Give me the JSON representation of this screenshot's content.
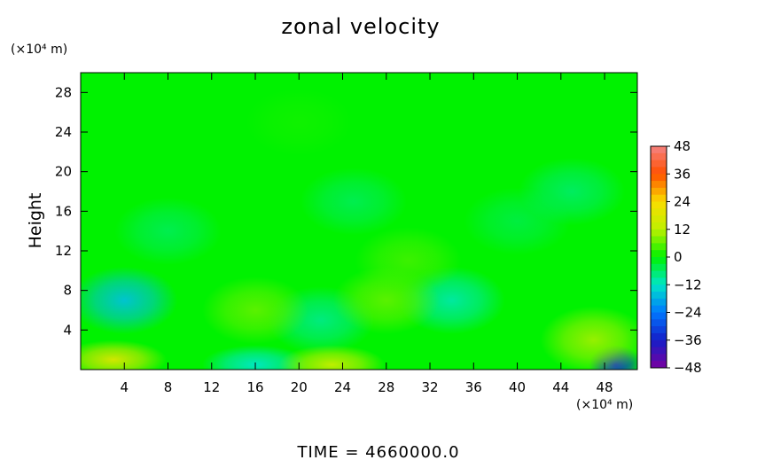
{
  "chart_data": {
    "type": "heatmap",
    "title": "zonal velocity",
    "ylabel": "Height",
    "y_unit": "(×10⁴ m)",
    "x_unit": "(×10⁴ m)",
    "x_ticks": [
      4,
      8,
      12,
      16,
      20,
      24,
      28,
      32,
      36,
      40,
      44,
      48
    ],
    "y_ticks": [
      4,
      8,
      12,
      16,
      20,
      24,
      28
    ],
    "xlim": [
      0,
      51
    ],
    "ylim": [
      0,
      30
    ],
    "colorbar": {
      "ticks": [
        48,
        36,
        24,
        12,
        0,
        -12,
        -24,
        -36,
        -48
      ],
      "range": [
        -48,
        48
      ]
    },
    "field_features": [
      {
        "x": 4,
        "y": 7,
        "value": -16
      },
      {
        "x": 3,
        "y": 1,
        "value": 18
      },
      {
        "x": 22,
        "y": 5,
        "value": -8
      },
      {
        "x": 34,
        "y": 7,
        "value": -10
      },
      {
        "x": 16,
        "y": 6,
        "value": 6
      },
      {
        "x": 28,
        "y": 7,
        "value": 6
      },
      {
        "x": 16,
        "y": 0.5,
        "value": -12
      },
      {
        "x": 23,
        "y": 0.5,
        "value": 14
      },
      {
        "x": 49,
        "y": 0.5,
        "value": -34
      },
      {
        "x": 47,
        "y": 3,
        "value": 10
      },
      {
        "x": 8,
        "y": 14,
        "value": -5
      },
      {
        "x": 25,
        "y": 17,
        "value": -5
      },
      {
        "x": 40,
        "y": 15,
        "value": -4
      },
      {
        "x": 45,
        "y": 18,
        "value": -6
      },
      {
        "x": 30,
        "y": 11,
        "value": 4
      },
      {
        "x": 20,
        "y": 25,
        "value": 1
      }
    ],
    "background_value": 0,
    "footer": "TIME = 4660000.0"
  }
}
